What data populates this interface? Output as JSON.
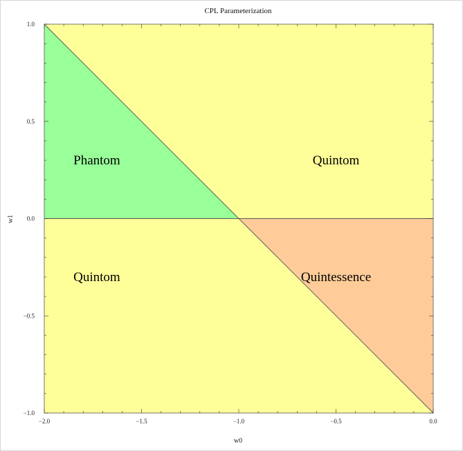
{
  "chart_data": {
    "type": "area",
    "title": "CPL Parameterization",
    "xlabel": "w0",
    "ylabel": "w1",
    "xlim": [
      -2.0,
      0.0
    ],
    "ylim": [
      -1.0,
      1.0
    ],
    "x_ticks": [
      -2.0,
      -1.5,
      -1.0,
      -0.5,
      0.0
    ],
    "x_tick_labels": [
      "−2.0",
      "−1.5",
      "−1.0",
      "−0.5",
      "0.0"
    ],
    "y_ticks": [
      -1.0,
      -0.5,
      0.0,
      0.5,
      1.0
    ],
    "y_tick_labels": [
      "−1.0",
      "−0.5",
      "0.0",
      "0.5",
      "1.0"
    ],
    "background_color": "#ffff99",
    "lines": [
      {
        "x": [
          -2.0,
          0.0
        ],
        "y": [
          1.0,
          -1.0
        ]
      },
      {
        "x": [
          -2.0,
          0.0
        ],
        "y": [
          0.0,
          0.0
        ]
      }
    ],
    "regions": [
      {
        "label": "Phantom",
        "color": "#99ff99",
        "polygon": [
          [
            -2.0,
            0.0
          ],
          [
            -2.0,
            1.0
          ],
          [
            -1.0,
            0.0
          ]
        ],
        "label_at": [
          -1.85,
          0.3
        ]
      },
      {
        "label": "Quintessence",
        "color": "#ffcc99",
        "polygon": [
          [
            -1.0,
            0.0
          ],
          [
            0.0,
            0.0
          ],
          [
            0.0,
            -1.0
          ]
        ],
        "label_at": [
          -0.5,
          -0.3
        ]
      },
      {
        "label": "Quintom",
        "color": "#ffff99",
        "polygon": [],
        "label_at": [
          -0.5,
          0.3
        ]
      },
      {
        "label": "Quintom",
        "color": "#ffff99",
        "polygon": [],
        "label_at": [
          -1.85,
          -0.3
        ]
      }
    ]
  }
}
